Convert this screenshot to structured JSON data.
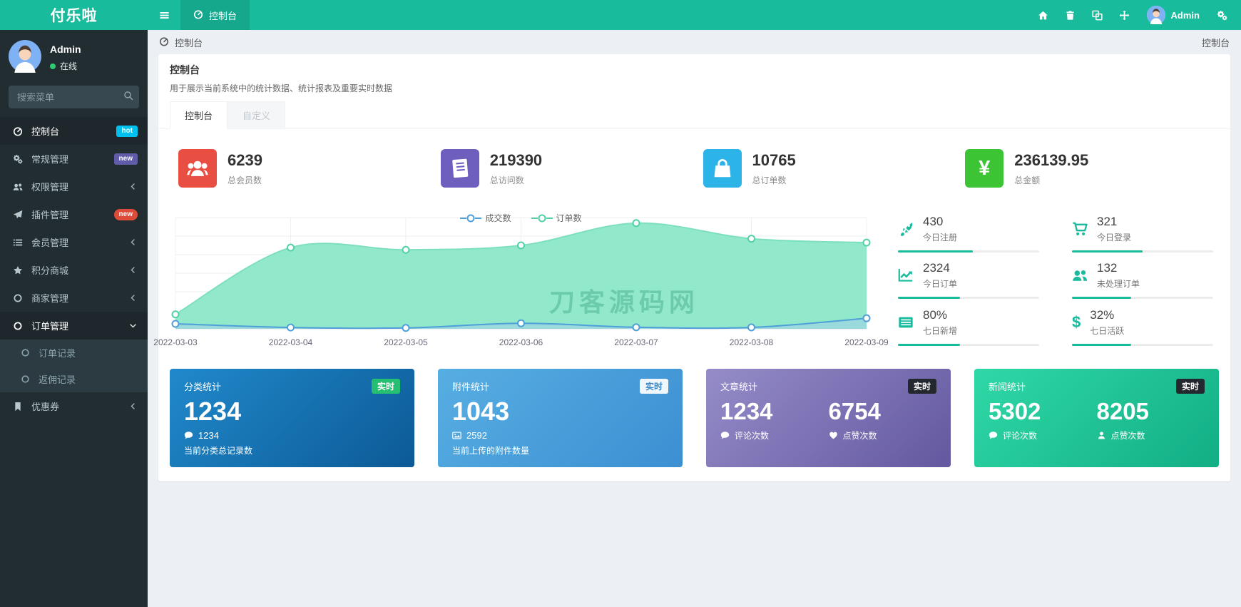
{
  "accent": "#18bc9c",
  "brand": {
    "logo": "付乐啦"
  },
  "navbar": {
    "active_tab": {
      "icon": "tachometer",
      "label": "控制台"
    },
    "right_icons": [
      {
        "name": "home"
      },
      {
        "name": "trash"
      },
      {
        "name": "language"
      },
      {
        "name": "expand"
      }
    ],
    "user": {
      "name": "Admin"
    },
    "settings_icon": "cogs"
  },
  "sidebar": {
    "user": {
      "name": "Admin",
      "status": "在线"
    },
    "search_placeholder": "搜索菜单",
    "menu": [
      {
        "name": "dashboard",
        "icon": "tachometer",
        "label": "控制台",
        "badge": "hot",
        "badge_color": "#00c0ef",
        "active": true
      },
      {
        "name": "general",
        "icon": "cogs",
        "label": "常规管理",
        "badge": "new",
        "badge_color": "#605ca8"
      },
      {
        "name": "permission",
        "icon": "users",
        "label": "权限管理",
        "chevron": "left"
      },
      {
        "name": "plugin",
        "icon": "send",
        "label": "插件管理",
        "badge": "new",
        "badge_color": "#dd4b39",
        "badge_pill": true
      },
      {
        "name": "member",
        "icon": "list",
        "label": "会员管理",
        "chevron": "left"
      },
      {
        "name": "points-mall",
        "icon": "star",
        "label": "积分商城",
        "chevron": "left"
      },
      {
        "name": "merchant",
        "icon": "circle",
        "label": "商家管理",
        "chevron": "left"
      },
      {
        "name": "order",
        "icon": "circle",
        "label": "订单管理",
        "chevron": "down",
        "expanded": true,
        "children": [
          {
            "name": "order-records",
            "icon": "circle",
            "label": "订单记录"
          },
          {
            "name": "rebate-records",
            "icon": "circle",
            "label": "返佣记录"
          }
        ]
      },
      {
        "name": "coupon",
        "icon": "bookmark",
        "label": "优惠券",
        "chevron": "left"
      }
    ]
  },
  "breadcrumb": {
    "left": "控制台",
    "right": "控制台"
  },
  "page": {
    "title": "控制台",
    "subtitle": "用于展示当前系统中的统计数据、统计报表及重要实时数据"
  },
  "tabs": [
    {
      "name": "console",
      "label": "控制台",
      "active": true
    },
    {
      "name": "custom",
      "label": "自定义",
      "active": false
    }
  ],
  "stats": [
    {
      "name": "total-members",
      "value": "6239",
      "label": "总会员数",
      "icon": "users-group",
      "color": "#e94e43"
    },
    {
      "name": "total-visits",
      "value": "219390",
      "label": "总访问数",
      "icon": "book",
      "color": "#6e5fbe"
    },
    {
      "name": "total-orders",
      "value": "10765",
      "label": "总订单数",
      "icon": "shopping-bag",
      "color": "#2cb4e8"
    },
    {
      "name": "total-amount",
      "value": "236139.95",
      "label": "总金额",
      "icon": "yen",
      "color": "#3cc434"
    }
  ],
  "chart_data": {
    "type": "area",
    "x": [
      "2022-03-03",
      "2022-03-04",
      "2022-03-05",
      "2022-03-06",
      "2022-03-07",
      "2022-03-08",
      "2022-03-09"
    ],
    "series": [
      {
        "name": "成交数",
        "line_color": "#4f9fd8",
        "fill_color": "rgba(160,205,235,0.55)",
        "marker_color": "#4f9fd8",
        "values": [
          45,
          12,
          8,
          50,
          14,
          13,
          95
        ]
      },
      {
        "name": "订单数",
        "line_color": "#7de0bd",
        "fill_color": "#92e8ca",
        "marker_color": "#52d1a6",
        "values": [
          130,
          730,
          710,
          750,
          950,
          810,
          775
        ]
      }
    ],
    "ylim": [
      0,
      1000
    ],
    "grid": true,
    "legend_position": "top-center"
  },
  "watermark": "刀客源码网",
  "mini_stats": [
    {
      "name": "today-registered",
      "value": "430",
      "label": "今日注册",
      "icon": "rocket",
      "bar": 0.53
    },
    {
      "name": "today-logins",
      "value": "321",
      "label": "今日登录",
      "icon": "cart",
      "bar": 0.5
    },
    {
      "name": "today-orders",
      "value": "2324",
      "label": "今日订单",
      "icon": "chart-line",
      "bar": 0.44
    },
    {
      "name": "unprocessed-orders",
      "value": "132",
      "label": "未处理订单",
      "icon": "users",
      "bar": 0.42
    },
    {
      "name": "seven-day-new",
      "value": "80%",
      "label": "七日新增",
      "icon": "table",
      "bar": 0.44
    },
    {
      "name": "seven-day-active",
      "value": "32%",
      "label": "七日活跃",
      "icon": "dollar",
      "bar": 0.42
    }
  ],
  "bottom_cards": [
    {
      "name": "category-stats",
      "title": "分类统计",
      "badge": "实时",
      "badge_style": "green",
      "value": "1234",
      "sub_icon": "comment",
      "sub_value": "1234",
      "desc": "当前分类总记录数",
      "gradient": [
        "#2189cb",
        "#0c5a96"
      ]
    },
    {
      "name": "attachment-stats",
      "title": "附件统计",
      "badge": "实时",
      "badge_style": "light",
      "value": "1043",
      "sub_icon": "image",
      "sub_value": "2592",
      "desc": "当前上传的附件数量",
      "gradient": [
        "#57aee2",
        "#3c8fd2"
      ]
    },
    {
      "name": "article-stats",
      "title": "文章统计",
      "badge": "实时",
      "badge_style": "dark",
      "cols": [
        {
          "value": "1234",
          "icon": "comment",
          "label": "评论次数"
        },
        {
          "value": "6754",
          "icon": "heart",
          "label": "点赞次数"
        }
      ],
      "gradient": [
        "#958cc9",
        "#63589f"
      ]
    },
    {
      "name": "news-stats",
      "title": "新闻统计",
      "badge": "实时",
      "badge_style": "dark",
      "cols": [
        {
          "value": "5302",
          "icon": "comment",
          "label": "评论次数"
        },
        {
          "value": "8205",
          "icon": "user",
          "label": "点赞次数"
        }
      ],
      "gradient": [
        "#2fd8a7",
        "#12ae84"
      ]
    }
  ]
}
